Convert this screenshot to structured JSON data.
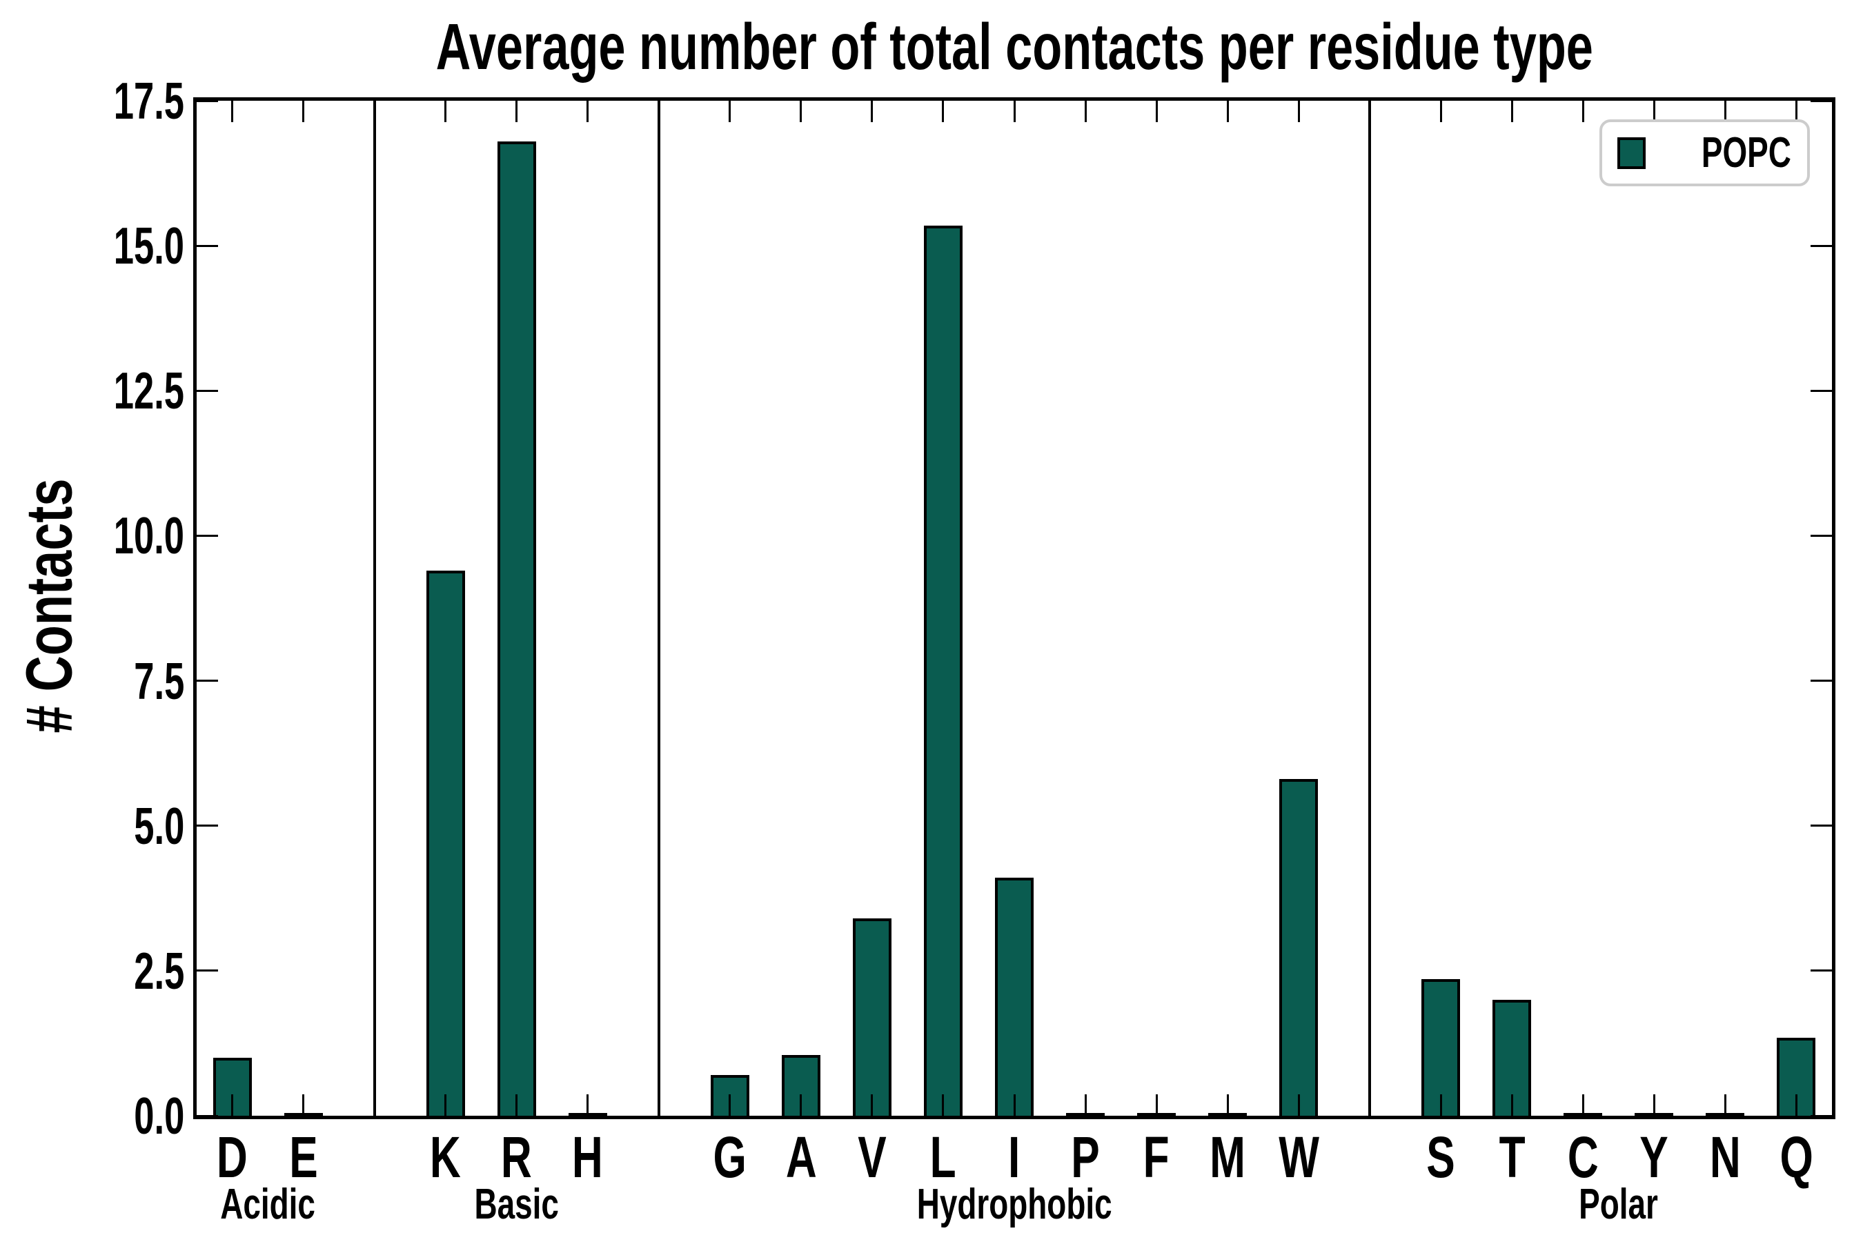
{
  "figure": {
    "title": "Average number of total contacts per residue type",
    "y_axis_label": "# Contacts"
  },
  "colors": {
    "bar_fill": "#0a5c50",
    "bar_edge": "#000000",
    "axis": "#000000",
    "legend_border": "#cccccc",
    "background": "#ffffff"
  },
  "legend": {
    "items": [
      {
        "label": "POPC",
        "swatch_color": "#0a5c50"
      }
    ]
  },
  "chart_data": {
    "type": "bar",
    "title": "Average number of total contacts per residue type",
    "xlabel": "",
    "ylabel": "# Contacts",
    "ylim": [
      0,
      17.5
    ],
    "yticks": [
      "0.0",
      "2.5",
      "5.0",
      "7.5",
      "10.0",
      "12.5",
      "15.0",
      "17.5"
    ],
    "grid": false,
    "legend_position": "upper right",
    "series_name": "POPC",
    "groups": [
      {
        "label": "Acidic",
        "categories": [
          "D",
          "E"
        ],
        "values": [
          1.0,
          0.04
        ]
      },
      {
        "label": "Basic",
        "categories": [
          "K",
          "R",
          "H"
        ],
        "values": [
          9.4,
          16.8,
          0.04
        ]
      },
      {
        "label": "Hydrophobic",
        "categories": [
          "G",
          "A",
          "V",
          "L",
          "I",
          "P",
          "F",
          "M",
          "W"
        ],
        "values": [
          0.7,
          1.05,
          3.4,
          15.35,
          4.1,
          0.04,
          0.04,
          0.04,
          5.8
        ]
      },
      {
        "label": "Polar",
        "categories": [
          "S",
          "T",
          "C",
          "Y",
          "N",
          "Q"
        ],
        "values": [
          2.35,
          2.0,
          0.04,
          0.04,
          0.04,
          1.35
        ]
      }
    ]
  }
}
